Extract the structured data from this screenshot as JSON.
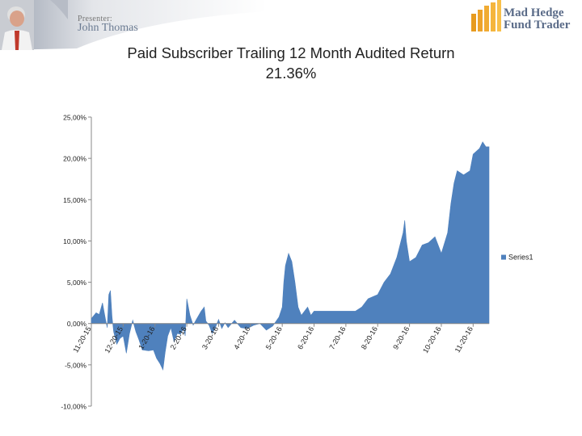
{
  "banner": {
    "presenter_label": "Presenter:",
    "presenter_name": "John Thomas",
    "brand_line1": "Mad Hedge",
    "brand_line2": "Fund Trader"
  },
  "title_line1": "Paid Subscriber Trailing 12 Month Audited Return",
  "title_line2": "21.36%",
  "colors": {
    "series": "#4f81bd",
    "axis": "#888888",
    "text": "#222222"
  },
  "chart_data": {
    "type": "area",
    "ylim": [
      -10,
      25
    ],
    "yticks": [
      -10,
      -5,
      0,
      5,
      10,
      15,
      20,
      25
    ],
    "ytick_labels": [
      "-10,00%",
      "-5,00%",
      "0,00%",
      "5,00%",
      "10,00%",
      "15,00%",
      "20,00%",
      "25,00%"
    ],
    "categories": [
      "11-20-15",
      "12-20-15",
      "1-20-16",
      "2-20-16",
      "3-20-16",
      "4-20-16",
      "5-20-16",
      "6-20-16",
      "7-20-16",
      "8-20-16",
      "9-20-16",
      "10-20-16",
      "11-20-16"
    ],
    "legend": {
      "position": "right",
      "entries": [
        "Series1"
      ]
    },
    "series": [
      {
        "name": "Series1",
        "points": [
          [
            0,
            0.6
          ],
          [
            0.15,
            1.3
          ],
          [
            0.25,
            1.1
          ],
          [
            0.35,
            2.5
          ],
          [
            0.45,
            0.4
          ],
          [
            0.5,
            -0.5
          ],
          [
            0.55,
            3.5
          ],
          [
            0.6,
            4.0
          ],
          [
            0.65,
            0.8
          ],
          [
            0.7,
            -1.0
          ],
          [
            0.8,
            -2.5
          ],
          [
            0.9,
            -1.8
          ],
          [
            1.0,
            -1.5
          ],
          [
            1.1,
            -3.6
          ],
          [
            1.2,
            -1.2
          ],
          [
            1.3,
            0.4
          ],
          [
            1.4,
            -1.0
          ],
          [
            1.5,
            -2.0
          ],
          [
            1.6,
            -3.2
          ],
          [
            1.8,
            -3.3
          ],
          [
            1.95,
            -3.2
          ],
          [
            2.05,
            -4.2
          ],
          [
            2.15,
            -4.8
          ],
          [
            2.25,
            -5.6
          ],
          [
            2.32,
            -3.5
          ],
          [
            2.4,
            -1.5
          ],
          [
            2.5,
            -0.5
          ],
          [
            2.6,
            -2.2
          ],
          [
            2.7,
            -1.2
          ],
          [
            2.8,
            -1.3
          ],
          [
            2.9,
            -0.6
          ],
          [
            2.95,
            -1.5
          ],
          [
            3.0,
            3.0
          ],
          [
            3.1,
            1.0
          ],
          [
            3.2,
            -0.2
          ],
          [
            3.3,
            0.5
          ],
          [
            3.45,
            1.5
          ],
          [
            3.55,
            2.0
          ],
          [
            3.6,
            0.3
          ],
          [
            3.7,
            -0.2
          ],
          [
            3.8,
            -1.2
          ],
          [
            3.9,
            -0.5
          ],
          [
            4.0,
            0.5
          ],
          [
            4.1,
            -0.6
          ],
          [
            4.2,
            0.1
          ],
          [
            4.3,
            -0.5
          ],
          [
            4.5,
            0.4
          ],
          [
            4.7,
            -0.5
          ],
          [
            4.9,
            -0.6
          ],
          [
            5.1,
            -0.2
          ],
          [
            5.3,
            0.0
          ],
          [
            5.5,
            -0.8
          ],
          [
            5.7,
            -0.3
          ],
          [
            5.9,
            0.8
          ],
          [
            6.0,
            2.0
          ],
          [
            6.05,
            5.0
          ],
          [
            6.1,
            7.0
          ],
          [
            6.2,
            8.5
          ],
          [
            6.3,
            7.5
          ],
          [
            6.4,
            5.0
          ],
          [
            6.5,
            2.0
          ],
          [
            6.6,
            1.0
          ],
          [
            6.7,
            1.5
          ],
          [
            6.8,
            2.0
          ],
          [
            6.9,
            1.0
          ],
          [
            7.0,
            1.5
          ],
          [
            7.5,
            1.5
          ],
          [
            8.0,
            1.5
          ],
          [
            8.3,
            1.5
          ],
          [
            8.5,
            2.0
          ],
          [
            8.7,
            3.0
          ],
          [
            9.0,
            3.5
          ],
          [
            9.2,
            5.0
          ],
          [
            9.4,
            6.0
          ],
          [
            9.6,
            8.0
          ],
          [
            9.8,
            11.0
          ],
          [
            9.85,
            12.5
          ],
          [
            9.9,
            10.0
          ],
          [
            10.0,
            7.5
          ],
          [
            10.2,
            8.0
          ],
          [
            10.4,
            9.5
          ],
          [
            10.6,
            9.8
          ],
          [
            10.8,
            10.5
          ],
          [
            11.0,
            8.5
          ],
          [
            11.2,
            11.0
          ],
          [
            11.3,
            14.5
          ],
          [
            11.4,
            17.0
          ],
          [
            11.5,
            18.5
          ],
          [
            11.7,
            18.0
          ],
          [
            11.9,
            18.5
          ],
          [
            12.0,
            20.5
          ],
          [
            12.2,
            21.2
          ],
          [
            12.3,
            22.0
          ],
          [
            12.4,
            21.4
          ],
          [
            12.5,
            21.4
          ]
        ]
      }
    ]
  }
}
